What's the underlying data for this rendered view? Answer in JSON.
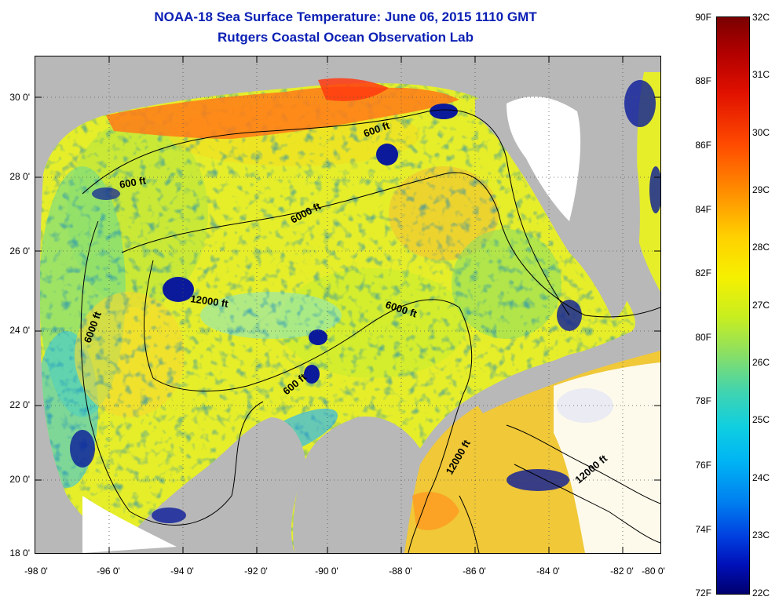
{
  "title_line1": "NOAA-18 Sea Surface Temperature:  June 06, 2015 1110 GMT",
  "title_line2": "Rutgers Coastal Ocean Observation Lab",
  "lat_labels": [
    "30 0'",
    "28 0'",
    "26 0'",
    "24 0'",
    "22 0'",
    "20 0'",
    "18 0'"
  ],
  "lon_labels": [
    "-98 0'",
    "-96 0'",
    "-94 0'",
    "-92 0'",
    "-90 0'",
    "-88 0'",
    "-86 0'",
    "-84 0'",
    "-82 0'",
    "-80 0'"
  ],
  "contour_labels": [
    "600 ft",
    "600 ft",
    "6000 ft",
    "12000 ft",
    "6000 ft",
    "6000 ft",
    "600 ft",
    "12000 ft",
    "12000 ft"
  ],
  "colorbar": {
    "fahrenheit": [
      "90F",
      "88F",
      "86F",
      "84F",
      "82F",
      "80F",
      "78F",
      "76F",
      "74F",
      "72F"
    ],
    "celsius": [
      "32C",
      "31C",
      "30C",
      "29C",
      "28C",
      "27C",
      "26C",
      "25C",
      "24C",
      "23C",
      "22C"
    ]
  },
  "colors": {
    "title": "#0a1fb4",
    "land": "#b8b8b8",
    "cloud": "#ffffff",
    "sst_main": "#e6ee2a",
    "sst_warm": "#ff6a10",
    "sst_cool": "#30c8e8",
    "sst_cold": "#0a1a9a"
  }
}
